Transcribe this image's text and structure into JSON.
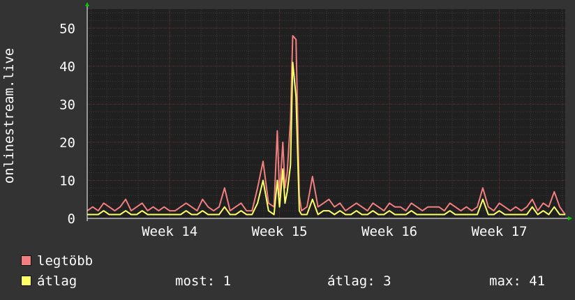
{
  "chart_data": {
    "type": "line",
    "ylabel": "onlinestream.live",
    "ylim": [
      0,
      55
    ],
    "yticks": [
      0,
      10,
      20,
      30,
      40,
      50
    ],
    "grid": true,
    "xlim": [
      13.25,
      17.6
    ],
    "xticks": [
      {
        "label": "Week 14",
        "value": 14
      },
      {
        "label": "Week 15",
        "value": 15
      },
      {
        "label": "Week 16",
        "value": 16
      },
      {
        "label": "Week 17",
        "value": 17
      }
    ],
    "x": [
      13.25,
      13.3,
      13.35,
      13.4,
      13.45,
      13.5,
      13.55,
      13.6,
      13.65,
      13.7,
      13.75,
      13.8,
      13.85,
      13.9,
      13.95,
      14.0,
      14.05,
      14.1,
      14.15,
      14.2,
      14.25,
      14.3,
      14.35,
      14.4,
      14.45,
      14.5,
      14.55,
      14.6,
      14.65,
      14.7,
      14.75,
      14.8,
      14.85,
      14.9,
      14.95,
      14.98,
      15.0,
      15.03,
      15.05,
      15.07,
      15.1,
      15.12,
      15.15,
      15.18,
      15.2,
      15.25,
      15.3,
      15.35,
      15.4,
      15.45,
      15.5,
      15.55,
      15.6,
      15.65,
      15.7,
      15.75,
      15.8,
      15.85,
      15.9,
      15.95,
      16.0,
      16.05,
      16.1,
      16.15,
      16.2,
      16.25,
      16.3,
      16.35,
      16.4,
      16.45,
      16.5,
      16.55,
      16.6,
      16.65,
      16.7,
      16.75,
      16.8,
      16.85,
      16.9,
      16.95,
      17.0,
      17.05,
      17.1,
      17.15,
      17.2,
      17.25,
      17.3,
      17.35,
      17.4,
      17.45,
      17.5,
      17.55,
      17.6
    ],
    "series": [
      {
        "name": "legtöbb",
        "color": "#f27f7f",
        "values": [
          2,
          3,
          2,
          4,
          3,
          2,
          3,
          5,
          2,
          3,
          4,
          2,
          3,
          2,
          3,
          2,
          2,
          3,
          4,
          3,
          2,
          5,
          3,
          2,
          3,
          8,
          2,
          3,
          4,
          2,
          2,
          8,
          15,
          4,
          3,
          23,
          6,
          20,
          8,
          12,
          26,
          48,
          47,
          6,
          2,
          3,
          11,
          3,
          4,
          5,
          3,
          4,
          2,
          3,
          4,
          3,
          2,
          4,
          3,
          2,
          4,
          3,
          3,
          2,
          4,
          3,
          2,
          3,
          3,
          3,
          2,
          4,
          3,
          2,
          3,
          2,
          3,
          8,
          3,
          2,
          4,
          3,
          2,
          3,
          2,
          3,
          5,
          2,
          4,
          3,
          7,
          3,
          1
        ]
      },
      {
        "name": "átlag",
        "color": "#ffff66",
        "values": [
          1,
          1,
          1,
          2,
          1,
          1,
          1,
          2,
          1,
          1,
          2,
          1,
          1,
          1,
          1,
          1,
          1,
          1,
          2,
          1,
          1,
          2,
          1,
          1,
          1,
          3,
          1,
          1,
          2,
          1,
          1,
          4,
          10,
          2,
          1,
          10,
          3,
          13,
          4,
          7,
          14,
          41,
          32,
          2,
          1,
          1,
          5,
          1,
          2,
          2,
          1,
          2,
          1,
          1,
          2,
          1,
          1,
          2,
          1,
          1,
          2,
          1,
          1,
          1,
          2,
          1,
          1,
          1,
          1,
          1,
          1,
          2,
          1,
          1,
          1,
          1,
          1,
          5,
          1,
          1,
          2,
          1,
          1,
          1,
          1,
          1,
          3,
          1,
          2,
          1,
          3,
          1,
          1
        ]
      }
    ]
  },
  "legend": {
    "max_label": "legtöbb",
    "avg_label": "átlag"
  },
  "stats": {
    "now": "most: 1",
    "avg": "átlag: 3",
    "max": "max: 41"
  },
  "colors": {
    "background": "#333333",
    "plot": "#202020",
    "grid_major": "#5a2a2a",
    "grid_minor": "#3a3a3a",
    "axis": "#ffffff",
    "arrow": "#00cc00"
  }
}
